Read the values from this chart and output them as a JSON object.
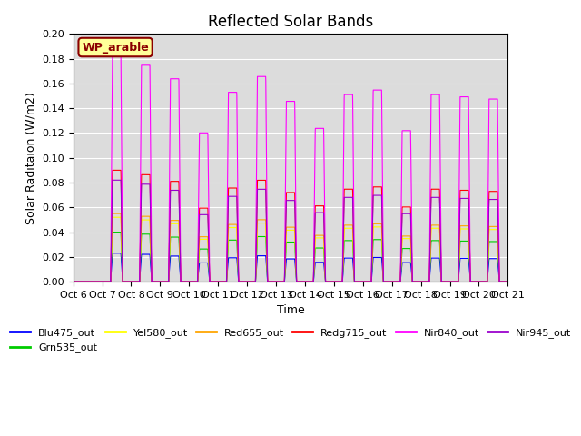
{
  "title": "Reflected Solar Bands",
  "xlabel": "Time",
  "ylabel": "Solar Raditaion (W/m2)",
  "ylim": [
    0,
    0.2
  ],
  "yticks": [
    0.0,
    0.02,
    0.04,
    0.06,
    0.08,
    0.1,
    0.12,
    0.14,
    0.16,
    0.18,
    0.2
  ],
  "xtick_labels": [
    "Oct 6",
    "Oct 7",
    "Oct 8",
    "Oct 9",
    "Oct 10",
    "Oct 11",
    "Oct 12",
    "Oct 13",
    "Oct 14",
    "Oct 15",
    "Oct 16",
    "Oct 17",
    "Oct 18",
    "Oct 19",
    "Oct 20",
    "Oct 21"
  ],
  "annotation_text": "WP_arable",
  "annotation_color": "#8B0000",
  "annotation_bg": "#FFFF99",
  "annotation_border": "#8B0000",
  "series": [
    {
      "label": "Blu475_out",
      "color": "#0000FF",
      "scale": 0.023
    },
    {
      "label": "Grn535_out",
      "color": "#00CC00",
      "scale": 0.04
    },
    {
      "label": "Yel580_out",
      "color": "#FFFF00",
      "scale": 0.052
    },
    {
      "label": "Red655_out",
      "color": "#FFA500",
      "scale": 0.055
    },
    {
      "label": "Redg715_out",
      "color": "#FF0000",
      "scale": 0.09
    },
    {
      "label": "Nir840_out",
      "color": "#FF00FF",
      "scale": 0.182
    },
    {
      "label": "Nir945_out",
      "color": "#9900CC",
      "scale": 0.082
    }
  ],
  "peak_scales": [
    1.0,
    0.96,
    0.9,
    0.66,
    0.84,
    0.91,
    0.8,
    0.68,
    0.83,
    0.85,
    0.67,
    0.83,
    0.82,
    0.81
  ],
  "background_color": "#DCDCDC",
  "grid_color": "#FFFFFF",
  "title_fontsize": 12,
  "label_fontsize": 9,
  "tick_fontsize": 8
}
